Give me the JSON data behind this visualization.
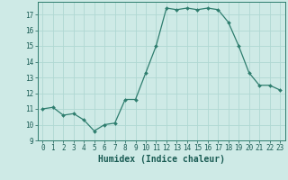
{
  "x": [
    0,
    1,
    2,
    3,
    4,
    5,
    6,
    7,
    8,
    9,
    10,
    11,
    12,
    13,
    14,
    15,
    16,
    17,
    18,
    19,
    20,
    21,
    22,
    23
  ],
  "y": [
    11.0,
    11.1,
    10.6,
    10.7,
    10.3,
    9.6,
    10.0,
    10.1,
    11.6,
    11.6,
    13.3,
    15.0,
    17.4,
    17.3,
    17.4,
    17.3,
    17.4,
    17.3,
    16.5,
    15.0,
    13.3,
    12.5,
    12.5,
    12.2
  ],
  "line_color": "#2e7d6e",
  "marker_color": "#2e7d6e",
  "bg_color": "#ceeae6",
  "grid_color": "#b0d8d2",
  "xlabel": "Humidex (Indice chaleur)",
  "ylim": [
    9,
    17.8
  ],
  "xlim": [
    -0.5,
    23.5
  ],
  "yticks": [
    9,
    10,
    11,
    12,
    13,
    14,
    15,
    16,
    17
  ],
  "xticks": [
    0,
    1,
    2,
    3,
    4,
    5,
    6,
    7,
    8,
    9,
    10,
    11,
    12,
    13,
    14,
    15,
    16,
    17,
    18,
    19,
    20,
    21,
    22,
    23
  ],
  "font_color": "#1a5c54",
  "axis_color": "#2e7d6e",
  "tick_fontsize": 5.5,
  "xlabel_fontsize": 7.0
}
